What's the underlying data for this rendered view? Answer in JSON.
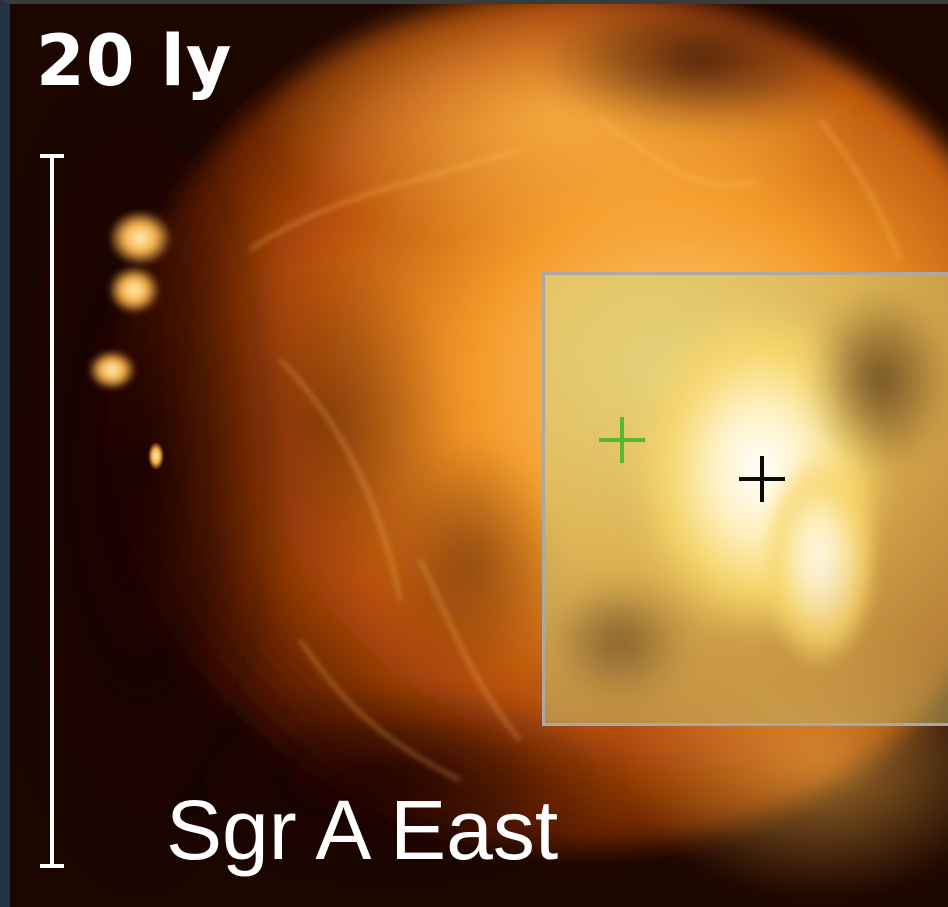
{
  "image": {
    "scale_label": "20 ly",
    "region_label": "Sgr A East",
    "colors": {
      "background": "#120400",
      "nebula_core": "#ffd27a",
      "nebula_mid": "#e07a14",
      "nebula_dark": "#5a1600",
      "inset_border": "#a9a9a9",
      "marker_green": "#56b82a",
      "marker_black": "#0b0b0b",
      "label": "#ffffff"
    },
    "markers": [
      "green-cross-icon",
      "black-cross-icon"
    ]
  }
}
